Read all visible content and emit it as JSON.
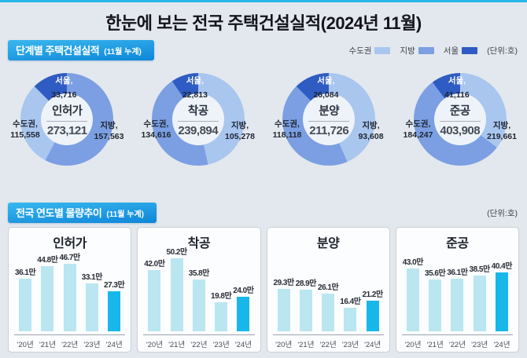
{
  "page": {
    "title": "한눈에 보는 전국 주택건설실적(2024년 11월)"
  },
  "colors": {
    "accent_cyan": "#27b6e9",
    "sudogwon": "#a9c6ef",
    "jibang": "#7b9fe2",
    "seoul": "#2f5cc2",
    "bar_light": "#b9e6f1",
    "bar_highlight": "#18b7e9"
  },
  "section1": {
    "title": "단계별 주택건설실적",
    "subtitle": "(11월 누계)",
    "legend": [
      {
        "label": "수도권",
        "color": "sudogwon"
      },
      {
        "label": "지방",
        "color": "jibang"
      },
      {
        "label": "서울",
        "color": "seoul"
      }
    ],
    "unit": "(단위:호)"
  },
  "section2": {
    "title": "전국 연도별 물량추이",
    "subtitle": "(11월 누계)",
    "unit": "(단위:호)"
  },
  "chart_data": {
    "donut_charts": [
      {
        "type": "pie",
        "title": "인허가",
        "total": "273,121",
        "slices": {
          "sudogwon": {
            "label": "수도권,",
            "value": "115,558"
          },
          "jibang": {
            "label": "지방,",
            "value": "157,563"
          },
          "seoul": {
            "label": "서울,",
            "value": "33,716"
          }
        },
        "segments": [
          {
            "color": "jibang",
            "from": 0,
            "to": 207.7
          },
          {
            "color": "sudogwon",
            "from": 207.7,
            "to": 315.6
          },
          {
            "color": "seoul",
            "from": 315.6,
            "to": 360
          }
        ]
      },
      {
        "type": "pie",
        "title": "착공",
        "total": "239,894",
        "slices": {
          "sudogwon": {
            "label": "수도권,",
            "value": "134,616"
          },
          "jibang": {
            "label": "지방,",
            "value": "105,278"
          },
          "seoul": {
            "label": "서울,",
            "value": "22,813"
          }
        },
        "segments": [
          {
            "color": "sudogwon",
            "from": 0,
            "to": 167.8
          },
          {
            "color": "jibang",
            "from": 167.8,
            "to": 325.7
          },
          {
            "color": "seoul",
            "from": 325.7,
            "to": 360
          }
        ]
      },
      {
        "type": "pie",
        "title": "분양",
        "total": "211,726",
        "slices": {
          "sudogwon": {
            "label": "수도권,",
            "value": "118,118"
          },
          "jibang": {
            "label": "지방,",
            "value": "93,608"
          },
          "seoul": {
            "label": "서울,",
            "value": "26,084"
          }
        },
        "segments": [
          {
            "color": "sudogwon",
            "from": 0,
            "to": 156.5
          },
          {
            "color": "jibang",
            "from": 156.5,
            "to": 315.6
          },
          {
            "color": "seoul",
            "from": 315.6,
            "to": 360
          }
        ]
      },
      {
        "type": "pie",
        "title": "준공",
        "total": "403,908",
        "slices": {
          "sudogwon": {
            "label": "수도권,",
            "value": "184,247"
          },
          "jibang": {
            "label": "지방,",
            "value": "219,661"
          },
          "seoul": {
            "label": "서울,",
            "value": "41,116"
          }
        },
        "segments": [
          {
            "color": "sudogwon",
            "from": 0,
            "to": 127.6
          },
          {
            "color": "jibang",
            "from": 127.6,
            "to": 323.4
          },
          {
            "color": "seoul",
            "from": 323.4,
            "to": 360
          }
        ]
      }
    ],
    "bar_charts": [
      {
        "type": "bar",
        "title": "인허가",
        "unit": "만 호",
        "categories": [
          "'20년",
          "'21년",
          "'22년",
          "'23년",
          "'24년"
        ],
        "values": [
          36.1,
          44.8,
          46.7,
          33.1,
          27.3
        ],
        "value_labels": [
          "36.1만",
          "44.8만",
          "46.7만",
          "33.1만",
          "27.3만"
        ],
        "highlight_index": 4
      },
      {
        "type": "bar",
        "title": "착공",
        "unit": "만 호",
        "categories": [
          "'20년",
          "'21년",
          "'22년",
          "'23년",
          "'24년"
        ],
        "values": [
          42.0,
          50.2,
          35.8,
          19.8,
          24.0
        ],
        "value_labels": [
          "42.0만",
          "50.2만",
          "35.8만",
          "19.8만",
          "24.0만"
        ],
        "highlight_index": 4
      },
      {
        "type": "bar",
        "title": "분양",
        "unit": "만 호",
        "categories": [
          "'20년",
          "'21년",
          "'22년",
          "'23년",
          "'24년"
        ],
        "values": [
          29.3,
          28.9,
          26.1,
          16.4,
          21.2
        ],
        "value_labels": [
          "29.3만",
          "28.9만",
          "26.1만",
          "16.4만",
          "21.2만"
        ],
        "highlight_index": 4
      },
      {
        "type": "bar",
        "title": "준공",
        "unit": "만 호",
        "categories": [
          "'20년",
          "'21년",
          "'22년",
          "'23년",
          "'24년"
        ],
        "values": [
          43.0,
          35.6,
          36.1,
          38.5,
          40.4
        ],
        "value_labels": [
          "43.0만",
          "35.6만",
          "36.1만",
          "38.5만",
          "40.4만"
        ],
        "highlight_index": 4
      }
    ]
  }
}
